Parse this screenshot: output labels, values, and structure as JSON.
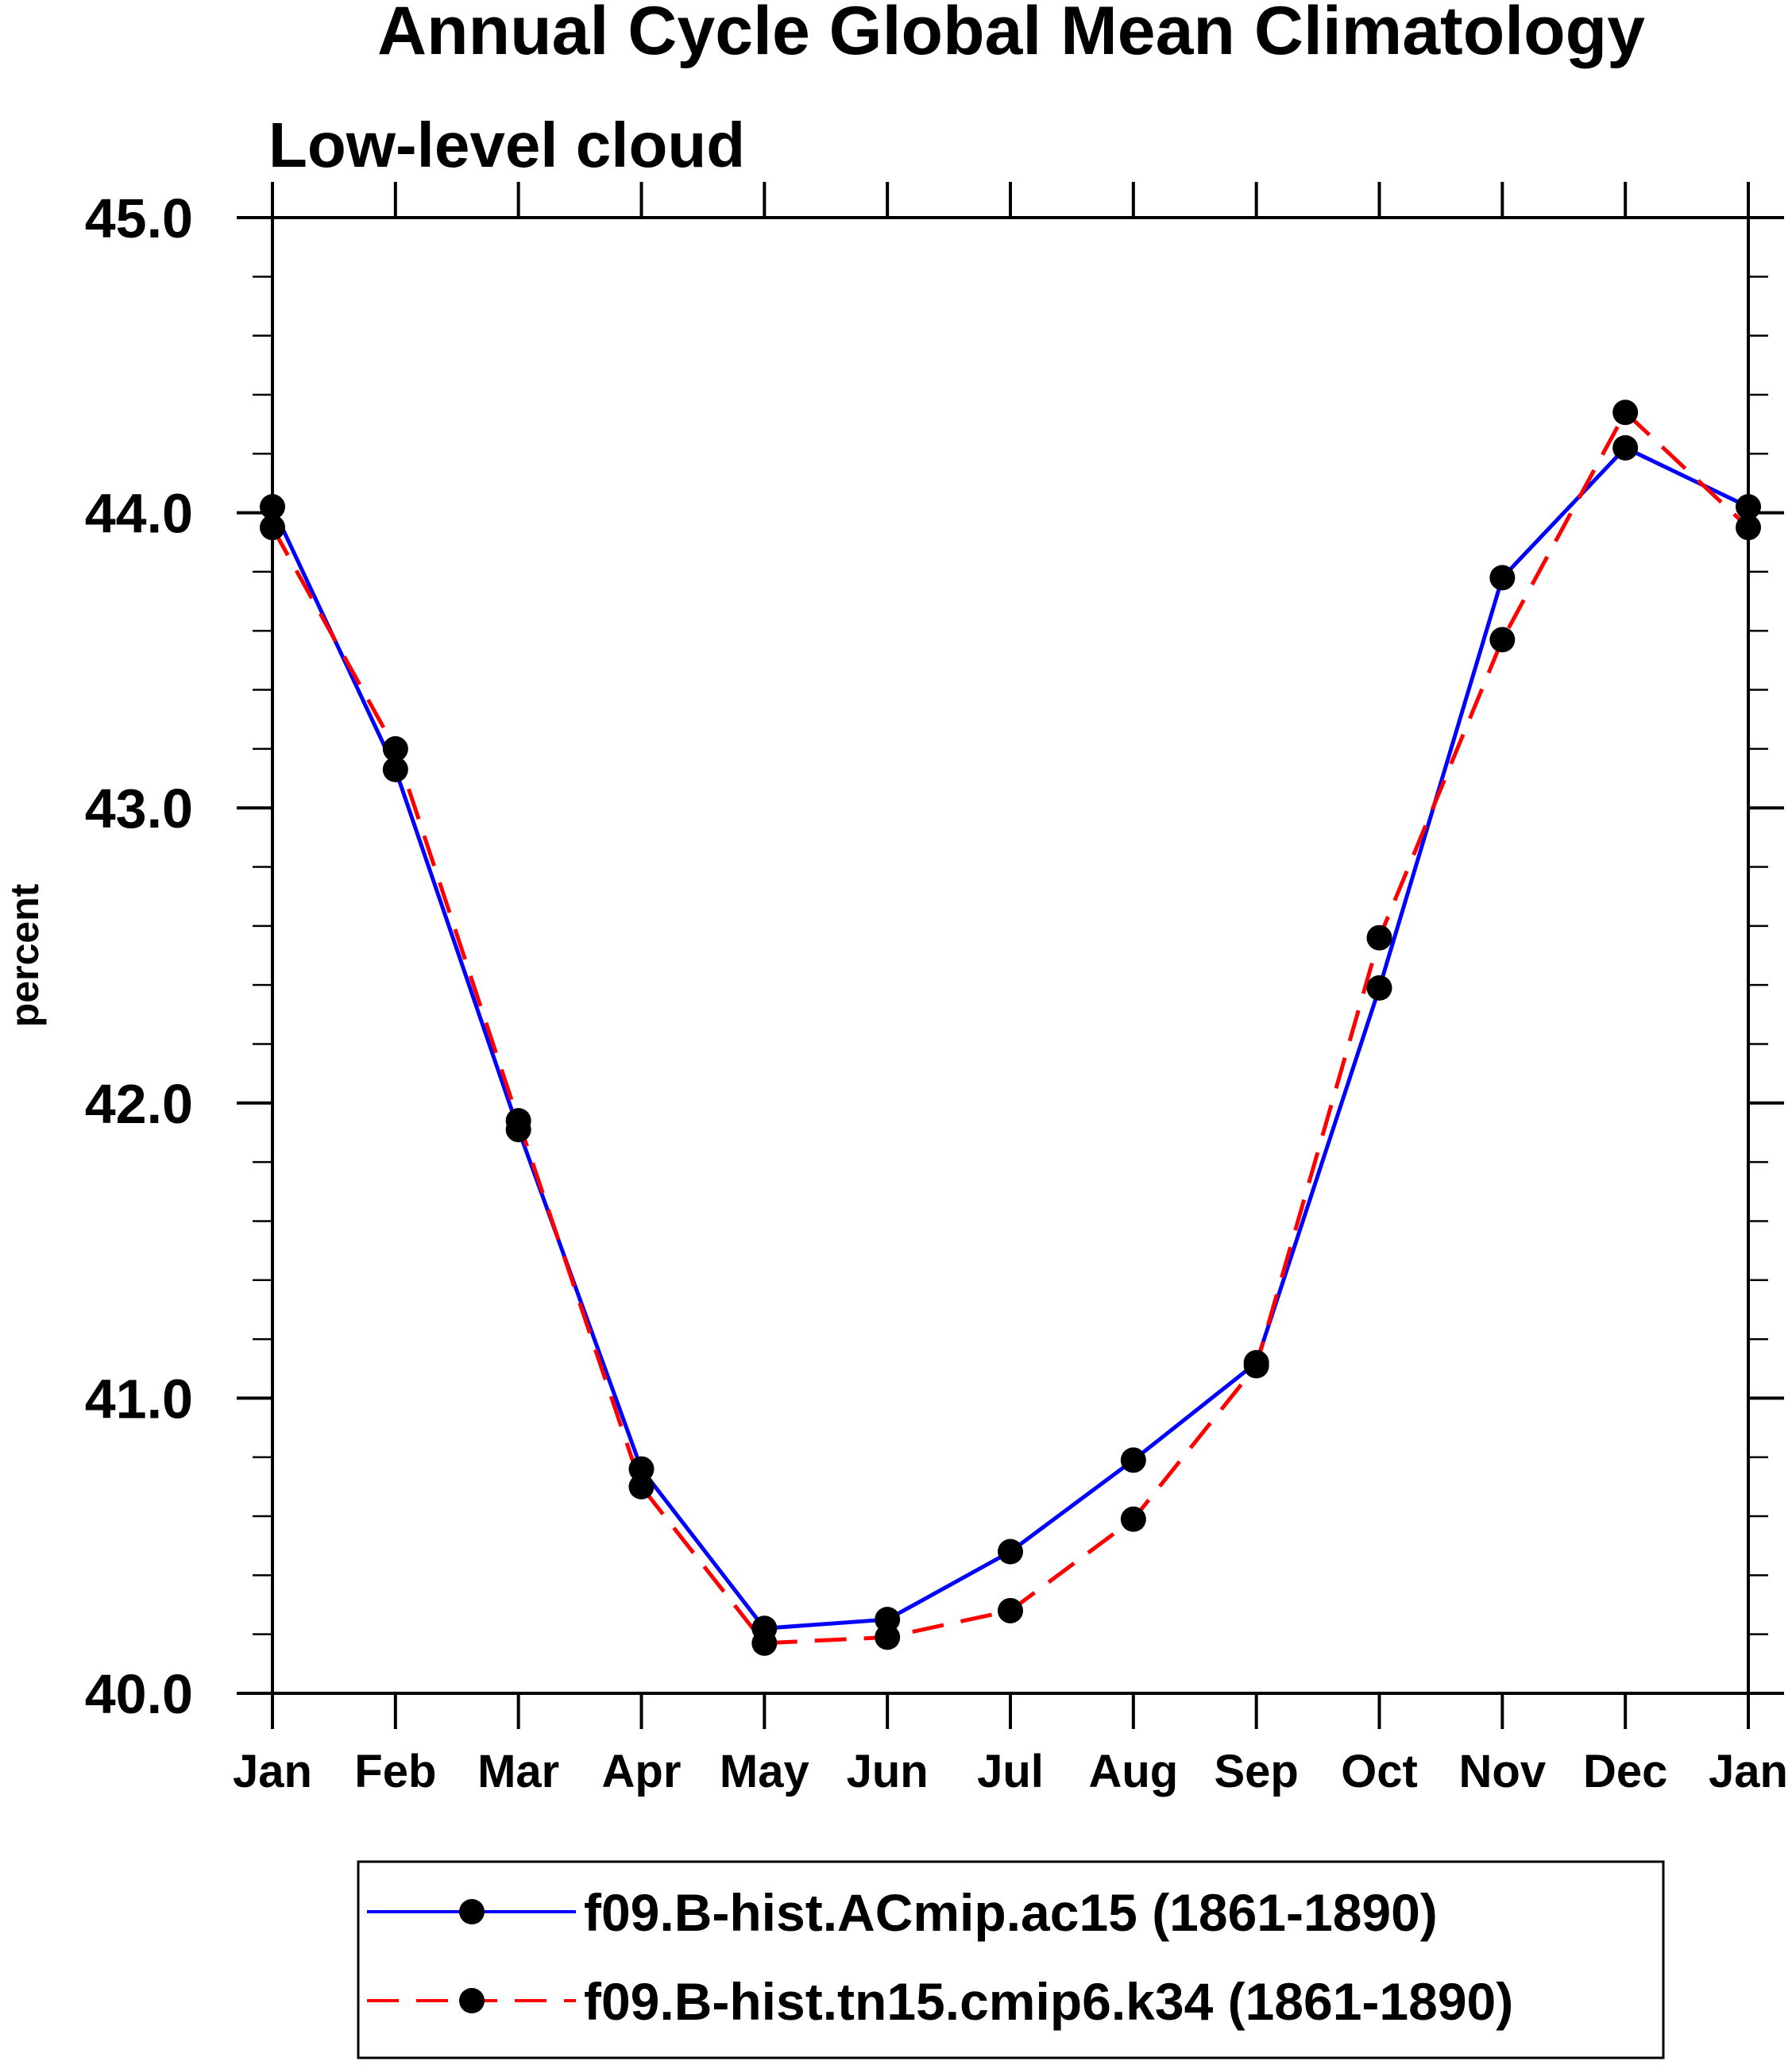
{
  "chart_data": {
    "type": "line",
    "title": "Annual Cycle Global Mean Climatology",
    "subtitle": "Low-level cloud",
    "ylabel": "percent",
    "xlabel": "",
    "categories": [
      "Jan",
      "Feb",
      "Mar",
      "Apr",
      "May",
      "Jun",
      "Jul",
      "Aug",
      "Sep",
      "Oct",
      "Nov",
      "Dec",
      "Jan"
    ],
    "ylim": [
      40.0,
      45.0
    ],
    "yticks": [
      "40.0",
      "41.0",
      "42.0",
      "43.0",
      "44.0",
      "45.0"
    ],
    "grid": false,
    "legend_placement": "bottom",
    "series": [
      {
        "name": "f09.B-hist.ACmip.ac15 (1861-1890)",
        "color": "#0000ff",
        "dash": "solid",
        "values": [
          44.02,
          43.13,
          41.91,
          40.76,
          40.22,
          40.25,
          40.48,
          40.79,
          41.12,
          42.39,
          43.78,
          44.22,
          44.02
        ]
      },
      {
        "name": "f09.B-hist.tn15.cmip6.k34 (1861-1890)",
        "color": "#ff0000",
        "dash": "dashed",
        "values": [
          43.95,
          43.2,
          41.94,
          40.7,
          40.17,
          40.19,
          40.28,
          40.59,
          41.11,
          42.56,
          43.57,
          44.34,
          43.95
        ]
      }
    ]
  }
}
